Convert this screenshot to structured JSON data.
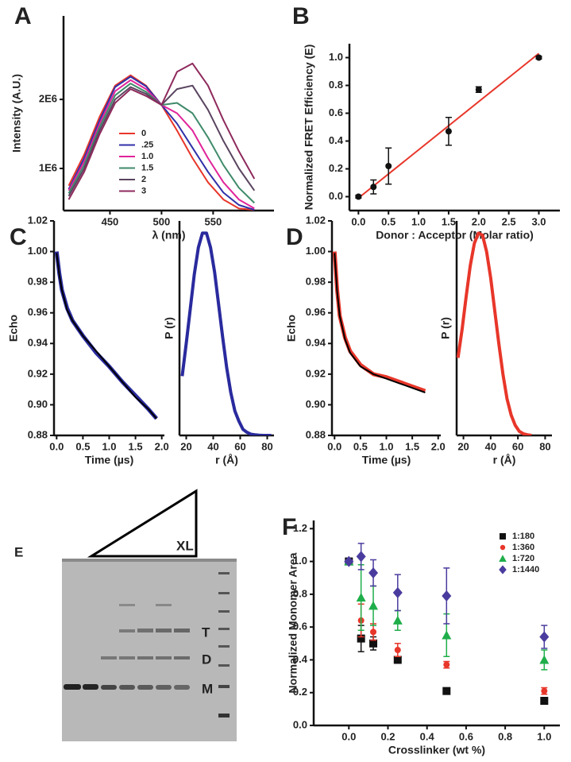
{
  "chart_data": [
    {
      "type": "line",
      "panel": "A",
      "ylabel": "Intensity (A.U.)",
      "xlabel": "λ (nm)",
      "x": [
        410,
        425,
        440,
        455,
        470,
        485,
        500,
        515,
        530,
        545,
        560,
        575,
        590
      ],
      "xlim": [
        405,
        609
      ],
      "xticks": [
        450,
        500,
        550
      ],
      "ylim": [
        390000,
        3210000
      ],
      "yticks": [
        {
          "value": 1000000,
          "label": "1E6"
        },
        {
          "value": 2000000,
          "label": "2E6"
        }
      ],
      "legend": "center-left",
      "series": [
        {
          "name": "0",
          "color": "#e8362a",
          "values": [
            750000,
            1200000,
            1750000,
            2200000,
            2350000,
            2200000,
            1920000,
            1550000,
            1150000,
            800000,
            550000,
            420000,
            400000
          ]
        },
        {
          "name": ".25",
          "color": "#3030a8",
          "values": [
            700000,
            1150000,
            1700000,
            2180000,
            2330000,
            2190000,
            1920000,
            1650000,
            1300000,
            950000,
            650000,
            470000,
            400000
          ]
        },
        {
          "name": "1.0",
          "color": "#e0249a",
          "values": [
            680000,
            1100000,
            1650000,
            2120000,
            2280000,
            2150000,
            1920000,
            1800000,
            1550000,
            1150000,
            800000,
            550000,
            420000
          ]
        },
        {
          "name": "1.5",
          "color": "#3f8a6a",
          "values": [
            640000,
            1050000,
            1600000,
            2060000,
            2230000,
            2110000,
            1920000,
            1950000,
            1800000,
            1450000,
            1050000,
            720000,
            500000
          ]
        },
        {
          "name": "2",
          "color": "#5a4560",
          "values": [
            600000,
            1000000,
            1550000,
            2000000,
            2180000,
            2080000,
            1920000,
            2150000,
            2200000,
            1850000,
            1400000,
            1000000,
            680000
          ]
        },
        {
          "name": "3",
          "color": "#8e2a5c",
          "values": [
            550000,
            950000,
            1500000,
            1950000,
            2150000,
            2050000,
            1920000,
            2400000,
            2520000,
            2200000,
            1700000,
            1250000,
            850000
          ]
        }
      ]
    },
    {
      "type": "scatter",
      "panel": "B",
      "ylabel": "Normalized FRET Efficiency (E)",
      "xlabel": "Donor : Acceptor (Molar ratio)",
      "xlim": [
        -0.15,
        3.35
      ],
      "xticks": [
        {
          "value": 0,
          "label": "0.0"
        },
        0.5,
        {
          "value": 1,
          "label": "1.0"
        },
        1.5,
        {
          "value": 2,
          "label": "2.0"
        },
        2.5,
        {
          "value": 3,
          "label": "3.0"
        }
      ],
      "ylim": [
        -0.1,
        1.1
      ],
      "yticks": [
        {
          "value": 0,
          "label": "0.0"
        },
        0.2,
        0.4,
        0.6,
        0.8,
        {
          "value": 1,
          "label": "1.0"
        }
      ],
      "series": [
        {
          "color": "#111111",
          "marker": "circle",
          "x": [
            0,
            0.25,
            0.5,
            1.5,
            2.0,
            3.0
          ],
          "values": [
            0.0,
            0.07,
            0.22,
            0.47,
            0.77,
            1.0
          ],
          "errors": [
            0.01,
            0.05,
            0.13,
            0.1,
            0.02,
            0.01
          ]
        }
      ],
      "fit": {
        "color": "#e8362a",
        "x": [
          0,
          3.0
        ],
        "values": [
          -0.01,
          1.03
        ]
      }
    },
    {
      "type": "line",
      "panel": "C",
      "ylabel": "Echo",
      "xlabel": "Time (µs)",
      "x": [
        0,
        0.05,
        0.1,
        0.2,
        0.3,
        0.5,
        0.75,
        1.0,
        1.25,
        1.5,
        1.75,
        1.9
      ],
      "xlim": [
        -0.05,
        2.05
      ],
      "xticks": [
        {
          "value": 0,
          "label": "0.0"
        },
        0.5,
        {
          "value": 1,
          "label": "1.0"
        },
        1.5,
        {
          "value": 2,
          "label": "2.0"
        }
      ],
      "ylim": [
        0.88,
        1.02
      ],
      "yticks": [
        0.88,
        {
          "value": 0.9,
          "label": "0.90"
        },
        0.92,
        0.94,
        0.96,
        0.98,
        {
          "value": 1,
          "label": "1.00"
        },
        1.02
      ],
      "series": [
        {
          "color": "#2a2a9e",
          "width": 5,
          "values": [
            1.0,
            0.986,
            0.975,
            0.963,
            0.955,
            0.945,
            0.934,
            0.925,
            0.915,
            0.906,
            0.897,
            0.891
          ]
        },
        {
          "color": "#000000",
          "width": 2,
          "values": [
            0.999,
            0.985,
            0.975,
            0.962,
            0.955,
            0.945,
            0.935,
            0.925,
            0.915,
            0.905,
            0.897,
            0.891
          ]
        }
      ]
    },
    {
      "type": "line",
      "ylabel": "P (r)",
      "xlabel": "r (Å)",
      "x": [
        17,
        20,
        23,
        26,
        29,
        32,
        35,
        38,
        41,
        44,
        47,
        50,
        53,
        56,
        59,
        62,
        65,
        68,
        71,
        74,
        77,
        80,
        83
      ],
      "xlim": [
        15,
        85
      ],
      "xticks": [
        20,
        40,
        60,
        80
      ],
      "ylim": [
        0,
        1.05
      ],
      "series": [
        {
          "color": "#2a2a9e",
          "width": 4,
          "values": [
            0.29,
            0.45,
            0.62,
            0.79,
            0.92,
            0.99,
            0.99,
            0.92,
            0.8,
            0.64,
            0.48,
            0.33,
            0.21,
            0.12,
            0.07,
            0.03,
            0.015,
            0.006,
            0.003,
            0.001,
            0,
            0,
            0
          ]
        }
      ]
    },
    {
      "type": "line",
      "panel": "D",
      "ylabel": "Echo",
      "xlabel": "Time (µs)",
      "x": [
        0,
        0.05,
        0.1,
        0.2,
        0.3,
        0.5,
        0.75,
        1.0,
        1.25,
        1.5,
        1.75
      ],
      "xlim": [
        -0.05,
        2.05
      ],
      "xticks": [
        {
          "value": 0,
          "label": "0.0"
        },
        0.5,
        {
          "value": 1,
          "label": "1.0"
        },
        1.5,
        {
          "value": 2,
          "label": "2.0"
        }
      ],
      "ylim": [
        0.88,
        1.02
      ],
      "yticks": [
        0.88,
        {
          "value": 0.9,
          "label": "0.90"
        },
        0.92,
        0.94,
        0.96,
        0.98,
        {
          "value": 1,
          "label": "1.00"
        },
        1.02
      ],
      "series": [
        {
          "color": "#e8362a",
          "width": 5,
          "values": [
            1.0,
            0.975,
            0.958,
            0.944,
            0.935,
            0.926,
            0.92,
            0.918,
            0.915,
            0.912,
            0.909
          ]
        },
        {
          "color": "#000000",
          "width": 2,
          "values": [
            0.999,
            0.974,
            0.958,
            0.943,
            0.934,
            0.925,
            0.92,
            0.917,
            0.914,
            0.911,
            0.908
          ]
        }
      ]
    },
    {
      "type": "line",
      "ylabel": "P (r)",
      "xlabel": "r (Å)",
      "x": [
        16,
        19,
        22,
        25,
        28,
        31,
        34,
        37,
        40,
        43,
        46,
        49,
        52,
        55,
        58,
        61,
        64,
        67,
        70
      ],
      "xlim": [
        15,
        85
      ],
      "xticks": [
        20,
        40,
        60,
        80
      ],
      "ylim": [
        0,
        1.05
      ],
      "series": [
        {
          "color": "#e8362a",
          "width": 4,
          "values": [
            0.38,
            0.52,
            0.68,
            0.83,
            0.94,
            0.99,
            0.98,
            0.9,
            0.77,
            0.61,
            0.45,
            0.3,
            0.18,
            0.1,
            0.05,
            0.02,
            0.008,
            0.003,
            0
          ]
        }
      ]
    },
    {
      "type": "scatter",
      "panel": "F",
      "ylabel": "Normalized Monomer Area",
      "xlabel": "Crosslinker (wt %)",
      "xlim": [
        -0.18,
        1.08
      ],
      "xticks": [
        {
          "value": 0,
          "label": "0.0"
        },
        0.2,
        0.4,
        0.6,
        0.8,
        {
          "value": 1,
          "label": "1.0"
        }
      ],
      "ylim": [
        0,
        1.25
      ],
      "yticks": [
        {
          "value": 0,
          "label": "0.0"
        },
        0.2,
        0.4,
        0.6,
        0.8,
        {
          "value": 1,
          "label": "1.0"
        },
        1.2
      ],
      "legend": "upper-right",
      "series": [
        {
          "name": "1:180",
          "color": "#111111",
          "marker": "square",
          "x": [
            0,
            0.0625,
            0.125,
            0.25,
            0.5,
            1.0
          ],
          "values": [
            1.0,
            0.53,
            0.5,
            0.4,
            0.21,
            0.15
          ],
          "errors": [
            0,
            0.08,
            0.04,
            0.02,
            0.01,
            0.02
          ]
        },
        {
          "name": "1:360",
          "color": "#e8362a",
          "marker": "circle",
          "x": [
            0,
            0.0625,
            0.125,
            0.25,
            0.5,
            1.0
          ],
          "values": [
            1.0,
            0.64,
            0.57,
            0.46,
            0.37,
            0.21
          ],
          "errors": [
            0,
            0.1,
            0.05,
            0.04,
            0.02,
            0.02
          ]
        },
        {
          "name": "1:720",
          "color": "#1fae4a",
          "marker": "triangle",
          "x": [
            0,
            0.0625,
            0.125,
            0.25,
            0.5,
            1.0
          ],
          "values": [
            1.0,
            0.78,
            0.73,
            0.64,
            0.55,
            0.4
          ],
          "errors": [
            0,
            0.2,
            0.12,
            0.06,
            0.13,
            0.06
          ]
        },
        {
          "name": "1:1440",
          "color": "#4a3c9e",
          "marker": "diamond",
          "x": [
            0,
            0.0625,
            0.125,
            0.25,
            0.5,
            1.0
          ],
          "values": [
            1.0,
            1.03,
            0.93,
            0.81,
            0.79,
            0.54
          ],
          "errors": [
            0,
            0.08,
            0.08,
            0.11,
            0.17,
            0.07
          ]
        }
      ]
    }
  ],
  "gel": {
    "panel": "E",
    "crosslinker": "XL",
    "bands": [
      "T",
      "D",
      "M"
    ]
  }
}
